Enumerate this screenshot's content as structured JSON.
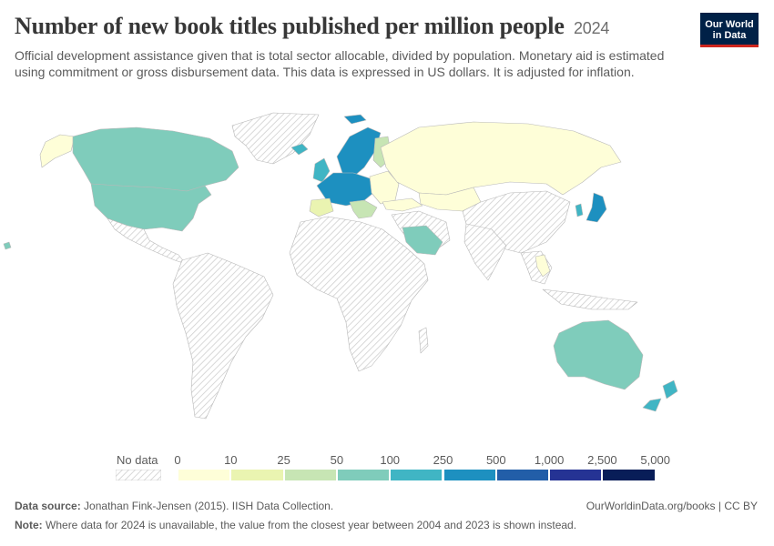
{
  "header": {
    "title": "Number of new book titles published per million people",
    "year": "2024",
    "subtitle": "Official development assistance given that is total sector allocable, divided by population. Monetary aid is estimated using commitment or gross disbursement data. This data is expressed in US dollars. It is adjusted for inflation."
  },
  "logo": {
    "line1": "Our World",
    "line2": "in Data"
  },
  "legend": {
    "no_data_label": "No data",
    "ticks": [
      "0",
      "10",
      "25",
      "50",
      "100",
      "250",
      "500",
      "1,000",
      "2,500",
      "5,000"
    ],
    "bin_colors": [
      "#fefed8",
      "#eaf4b1",
      "#c7e5b4",
      "#7fccbb",
      "#40b5c4",
      "#1d90c0",
      "#225ea8",
      "#253394",
      "#081d58"
    ]
  },
  "colors": {
    "no_data": "#e6e6e6",
    "border": "#b8b8b8"
  },
  "footer": {
    "source_label": "Data source:",
    "source_text": "Jonathan Fink-Jensen (2015). IISH Data Collection.",
    "note_label": "Note:",
    "note_text": "Where data for 2024 is unavailable, the value from the closest year between 2004 and 2023 is shown instead.",
    "url": "OurWorldinData.org/books | CC BY"
  }
}
